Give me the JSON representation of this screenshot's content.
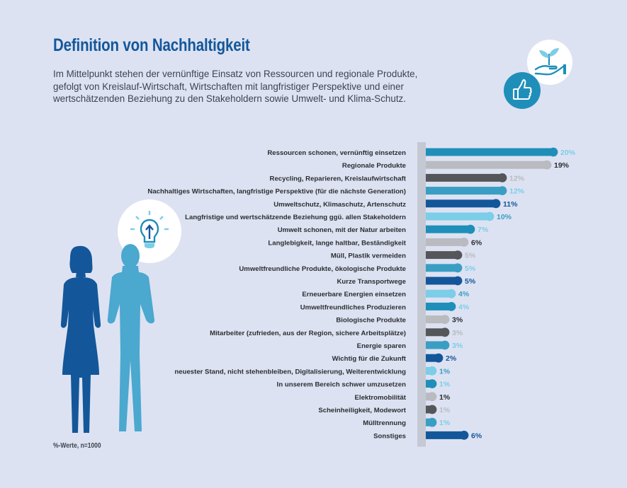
{
  "title": "Definition von Nachhaltigkeit",
  "subtitle_lines": [
    "Im Mittelpunkt stehen der vernünftige Einsatz von Ressourcen und regionale Produkte,",
    "gefolgt von Kreislauf-Wirtschaft, Wirtschaften mit langfristiger Perspektive und einer",
    "wertschätzenden Beziehung zu den Stakeholdern sowie Umwelt- und Klima-Schutz."
  ],
  "footnote": "%-Werte, n=1000",
  "icons": {
    "top_right": [
      "hand-plant-icon",
      "thumbs-up-icon"
    ],
    "left": [
      "lightbulb-icon",
      "business-people-icon"
    ]
  },
  "colors": {
    "teal": "#1f8fb9",
    "gray": "#b9bbc0",
    "dark_gray": "#545659",
    "mid_teal": "#3a9ec4",
    "navy": "#13579a",
    "light_teal": "#7ccde8",
    "track": "#c5c9d4"
  },
  "chart_data": {
    "type": "bar",
    "orientation": "horizontal",
    "unit": "%",
    "xlim": [
      0,
      20
    ],
    "categories": [
      "Ressourcen schonen, vernünftig einsetzen",
      "Regionale Produkte",
      "Recycling, Reparieren, Kreislaufwirtschaft",
      "Nachhaltiges Wirtschaften, langfristige Perspektive (für die nächste Generation)",
      "Umweltschutz, Klimaschutz, Artenschutz",
      "Langfristige und wertschätzende Beziehung ggü. allen Stakeholdern",
      "Umwelt schonen, mit der Natur arbeiten",
      "Langlebigkeit, lange haltbar, Beständigkeit",
      "Müll, Plastik vermeiden",
      "Umweltfreundliche Produkte, ökologische Produkte",
      "Kurze Transportwege",
      "Erneuerbare Energien einsetzen",
      "Umweltfreundliches Produzieren",
      "Biologische Produkte",
      "Mitarbeiter (zufrieden, aus der Region, sichere Arbeitsplätze)",
      "Energie sparen",
      "Wichtig für die Zukunft",
      "neuester Stand, nicht stehenbleiben, Digitalisierung, Weiterentwicklung",
      "In unserem Bereich schwer umzusetzen",
      "Elektromobilität",
      "Scheinheiligkeit, Modewort",
      "Mülltrennung",
      "Sonstiges"
    ],
    "values": [
      20,
      19,
      12,
      12,
      11,
      10,
      7,
      6,
      5,
      5,
      5,
      4,
      4,
      3,
      3,
      3,
      2,
      1,
      1,
      1,
      1,
      1,
      6
    ],
    "value_labels": [
      "20%",
      "19%",
      "12%",
      "12%",
      "11%",
      "10%",
      "7%",
      "6%",
      "5%",
      "5%",
      "5%",
      "4%",
      "4%",
      "3%",
      "3%",
      "3%",
      "2%",
      "1%",
      "1%",
      "1%",
      "1%",
      "1%",
      "6%"
    ],
    "bar_colors": [
      "teal",
      "gray",
      "dark_gray",
      "mid_teal",
      "navy",
      "light_teal",
      "teal",
      "gray",
      "dark_gray",
      "mid_teal",
      "navy",
      "light_teal",
      "teal",
      "gray",
      "dark_gray",
      "mid_teal",
      "navy",
      "light_teal",
      "teal",
      "gray",
      "dark_gray",
      "mid_teal",
      "navy"
    ],
    "value_label_colors": [
      "light_teal",
      "dark",
      "gray",
      "light_teal",
      "navy",
      "mid_teal",
      "light_teal",
      "dark",
      "gray",
      "light_teal",
      "navy",
      "mid_teal",
      "light_teal",
      "dark",
      "gray",
      "light_teal",
      "navy",
      "mid_teal",
      "light_teal",
      "dark",
      "gray",
      "light_teal",
      "navy"
    ],
    "grid": false,
    "legend": "none"
  }
}
